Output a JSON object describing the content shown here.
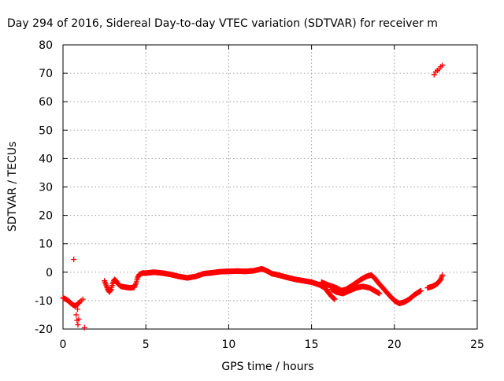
{
  "chart_data": {
    "type": "scatter",
    "title": "Day 294 of 2016, Sidereal Day-to-day VTEC variation (SDTVAR) for receiver m",
    "xlabel": "GPS time / hours",
    "ylabel": "SDTVAR / TECUs",
    "xlim": [
      0,
      25
    ],
    "ylim": [
      -20,
      80
    ],
    "xticks": [
      0,
      5,
      10,
      15,
      20,
      25
    ],
    "yticks": [
      -20,
      -10,
      0,
      10,
      20,
      30,
      40,
      50,
      60,
      70,
      80
    ],
    "grid": true,
    "marker": "+",
    "series": [
      {
        "name": "SDTVAR",
        "color": "#ff0000",
        "curve": [
          [
            0.0,
            -9
          ],
          [
            0.1,
            -9.3
          ],
          [
            0.2,
            -9.6
          ],
          [
            0.3,
            -10
          ],
          [
            0.4,
            -10.5
          ],
          [
            0.5,
            -11
          ],
          [
            0.6,
            -11.5
          ],
          [
            0.7,
            -11.8
          ],
          [
            0.8,
            -11.6
          ],
          [
            0.9,
            -11.2
          ],
          [
            1.0,
            -10.5
          ],
          [
            2.5,
            -3
          ],
          [
            2.6,
            -4.5
          ],
          [
            2.7,
            -6
          ],
          [
            2.8,
            -7
          ],
          [
            2.9,
            -6
          ],
          [
            3.0,
            -4
          ],
          [
            3.1,
            -2.5
          ],
          [
            3.2,
            -3
          ],
          [
            3.3,
            -4
          ],
          [
            3.4,
            -4.5
          ],
          [
            3.5,
            -5
          ],
          [
            3.7,
            -5.2
          ],
          [
            3.9,
            -5.4
          ],
          [
            4.1,
            -5.5
          ],
          [
            4.3,
            -5.3
          ],
          [
            4.4,
            -4
          ],
          [
            4.5,
            -2
          ],
          [
            4.6,
            -0.8
          ],
          [
            4.8,
            -0.3
          ],
          [
            5.0,
            -0.3
          ],
          [
            5.5,
            0
          ],
          [
            6.0,
            -0.3
          ],
          [
            6.5,
            -0.8
          ],
          [
            7.0,
            -1.5
          ],
          [
            7.5,
            -2
          ],
          [
            8.0,
            -1.5
          ],
          [
            8.5,
            -0.5
          ],
          [
            9.0,
            -0.2
          ],
          [
            9.5,
            0.2
          ],
          [
            10.0,
            0.3
          ],
          [
            10.5,
            0.4
          ],
          [
            11.0,
            0.3
          ],
          [
            11.5,
            0.5
          ],
          [
            12.0,
            1.2
          ],
          [
            12.3,
            0.5
          ],
          [
            12.6,
            -0.5
          ],
          [
            13.0,
            -1
          ],
          [
            13.5,
            -1.8
          ],
          [
            14.0,
            -2.5
          ],
          [
            14.5,
            -3
          ],
          [
            15.0,
            -3.5
          ],
          [
            15.5,
            -4.5
          ],
          [
            15.8,
            -5.5
          ],
          [
            16.0,
            -7
          ],
          [
            16.2,
            -8.5
          ],
          [
            16.4,
            -9.5
          ],
          [
            15.6,
            -3.5
          ],
          [
            16.0,
            -4.5
          ],
          [
            16.5,
            -5.5
          ],
          [
            16.8,
            -6.5
          ],
          [
            17.1,
            -6
          ],
          [
            17.5,
            -4.5
          ],
          [
            18.0,
            -2.5
          ],
          [
            18.3,
            -1.5
          ],
          [
            18.6,
            -1
          ],
          [
            18.8,
            -2
          ],
          [
            19.0,
            -3.5
          ],
          [
            19.3,
            -5.5
          ],
          [
            19.6,
            -7.5
          ],
          [
            20.0,
            -10
          ],
          [
            20.3,
            -11
          ],
          [
            20.6,
            -10.5
          ],
          [
            20.9,
            -9.5
          ],
          [
            21.2,
            -8
          ],
          [
            21.6,
            -6.5
          ],
          [
            16.2,
            -6
          ],
          [
            16.5,
            -7
          ],
          [
            16.9,
            -7.5
          ],
          [
            17.3,
            -6.5
          ],
          [
            17.7,
            -5.5
          ],
          [
            18.1,
            -5
          ],
          [
            18.5,
            -5.5
          ],
          [
            18.8,
            -6.5
          ],
          [
            19.1,
            -7.5
          ],
          [
            22.0,
            -5.5
          ],
          [
            22.3,
            -5
          ],
          [
            22.6,
            -4
          ],
          [
            22.8,
            -2.5
          ],
          [
            22.9,
            -1
          ]
        ],
        "scattered": [
          [
            0.65,
            4.5
          ],
          [
            0.8,
            -15
          ],
          [
            0.85,
            -17
          ],
          [
            0.9,
            -18.5
          ],
          [
            0.95,
            -16.5
          ],
          [
            0.88,
            -13
          ],
          [
            1.1,
            -10
          ],
          [
            1.2,
            -9.5
          ],
          [
            1.3,
            -19.5
          ],
          [
            22.4,
            69.5
          ],
          [
            22.5,
            70.5
          ],
          [
            22.6,
            71
          ],
          [
            22.7,
            71.5
          ],
          [
            22.8,
            72.3
          ],
          [
            22.9,
            72.8
          ]
        ]
      }
    ]
  }
}
